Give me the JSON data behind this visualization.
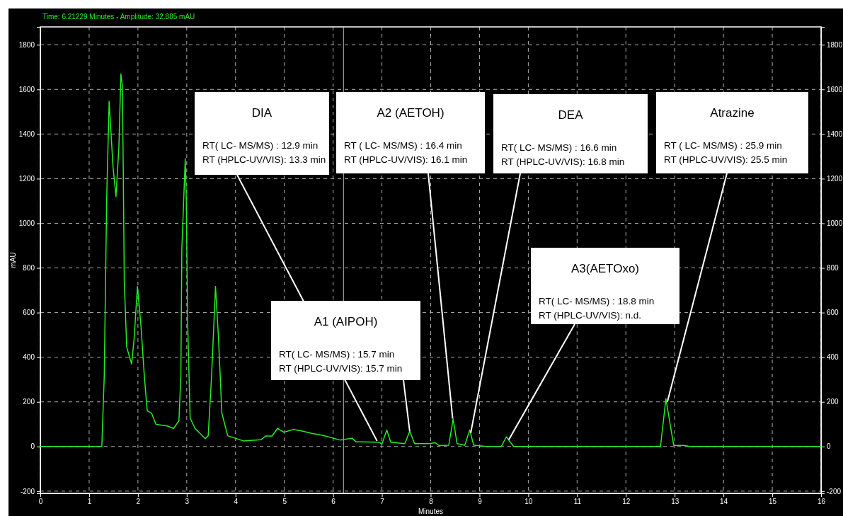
{
  "chart_data": {
    "type": "line",
    "title": "Time:  6.21229 Minutes - Amplitude:  32.885 mAU",
    "xlabel": "Minutes",
    "ylabel": "mAU",
    "xlim": [
      0,
      16
    ],
    "xticks": [
      0,
      1,
      2,
      3,
      4,
      5,
      6,
      7,
      8,
      9,
      10,
      11,
      12,
      13,
      14,
      15,
      16
    ],
    "ylim": [
      -210,
      1880
    ],
    "yticks": [
      -200,
      0,
      200,
      400,
      600,
      800,
      1000,
      1200,
      1400,
      1600,
      1800
    ],
    "y2lim": [
      -210,
      1880
    ],
    "y2ticks": [
      -200,
      0,
      200,
      400,
      600,
      800,
      1000,
      1200,
      1400,
      1600,
      1800
    ],
    "grid": true,
    "marker": "none",
    "line_style": "solid",
    "series": [
      {
        "color": "#22ee22",
        "x": [
          0,
          1.26,
          1.31,
          1.36,
          1.41,
          1.49,
          1.55,
          1.61,
          1.65,
          1.68,
          1.7,
          1.72,
          1.77,
          1.87,
          1.92,
          1.99,
          2.06,
          2.13,
          2.19,
          2.28,
          2.37,
          2.6,
          2.73,
          2.84,
          2.88,
          2.9,
          2.97,
          2.99,
          3.02,
          3.07,
          3.17,
          3.38,
          3.44,
          3.51,
          3.59,
          3.65,
          3.72,
          3.84,
          4.16,
          4.52,
          4.62,
          4.75,
          4.86,
          4.99,
          5.19,
          5.35,
          5.58,
          5.8,
          6.14,
          6.39,
          6.47,
          6.95,
          7.0,
          7.1,
          7.18,
          7.47,
          7.57,
          7.67,
          7.96,
          8.09,
          8.17,
          8.37,
          8.46,
          8.54,
          8.7,
          8.8,
          8.88,
          9.15,
          9.45,
          9.55,
          9.7,
          12.71,
          12.82,
          12.88,
          12.98,
          13.2,
          13.3,
          16
        ],
        "values": [
          0,
          0,
          318,
          1115,
          1546,
          1251,
          1120,
          1342,
          1669,
          1616,
          1228,
          741,
          445,
          370,
          478,
          717,
          547,
          319,
          160,
          149,
          99,
          92,
          81,
          115,
          319,
          887,
          1290,
          1115,
          547,
          127,
          81,
          35,
          48,
          319,
          717,
          490,
          149,
          48,
          25,
          30,
          47,
          47,
          81,
          64,
          76,
          70,
          58,
          49,
          29,
          37,
          21,
          19,
          10,
          74,
          19,
          13,
          68,
          13,
          13,
          17,
          4,
          6,
          123,
          13,
          6,
          74,
          6,
          0,
          1,
          43,
          0,
          0,
          214,
          135,
          5,
          5,
          0,
          0
        ]
      }
    ],
    "ref_lines": [
      {
        "axis": "x",
        "value": 6.21229,
        "color": "#c0c0c0"
      }
    ],
    "annotations": [
      "DIA",
      "RT( LC- MS/MS) : 12.9 min",
      {
        "text": "RT (HPLC-UV/VIS): 13.3 min",
        "x": 6.9,
        "y": 25
      },
      "A2 (AETOH)",
      "RT ( LC- MS/MS) : 16.4 min",
      {
        "text": "RT (HPLC-UV/VIS): 16.1 min",
        "x": 8.45,
        "y": 125
      },
      "DEA",
      "RT( LC- MS/MS) : 16.6 min",
      {
        "text": "RT (HPLC-UV/VIS): 16.8 min",
        "x": 8.82,
        "y": 60
      },
      "Atrazine",
      "RT ( LC- MS/MS) : 25.9 min",
      {
        "text": "RT (HPLC-UV/VIS): 25.5 min",
        "x": 12.85,
        "y": 200
      },
      "A1 (AIPOH)",
      "RT( LC- MS/MS) : 15.7 min",
      {
        "text": "RT (HPLC-UV/VIS): 15.7 min",
        "x": 7.57,
        "y": 68
      },
      "A3(AETOxo)",
      "RT( LC- MS/MS) : 18.8 min",
      {
        "text": "RT (HPLC-UV/VIS): n.d.",
        "x": 9.6,
        "y": 30
      }
    ]
  }
}
